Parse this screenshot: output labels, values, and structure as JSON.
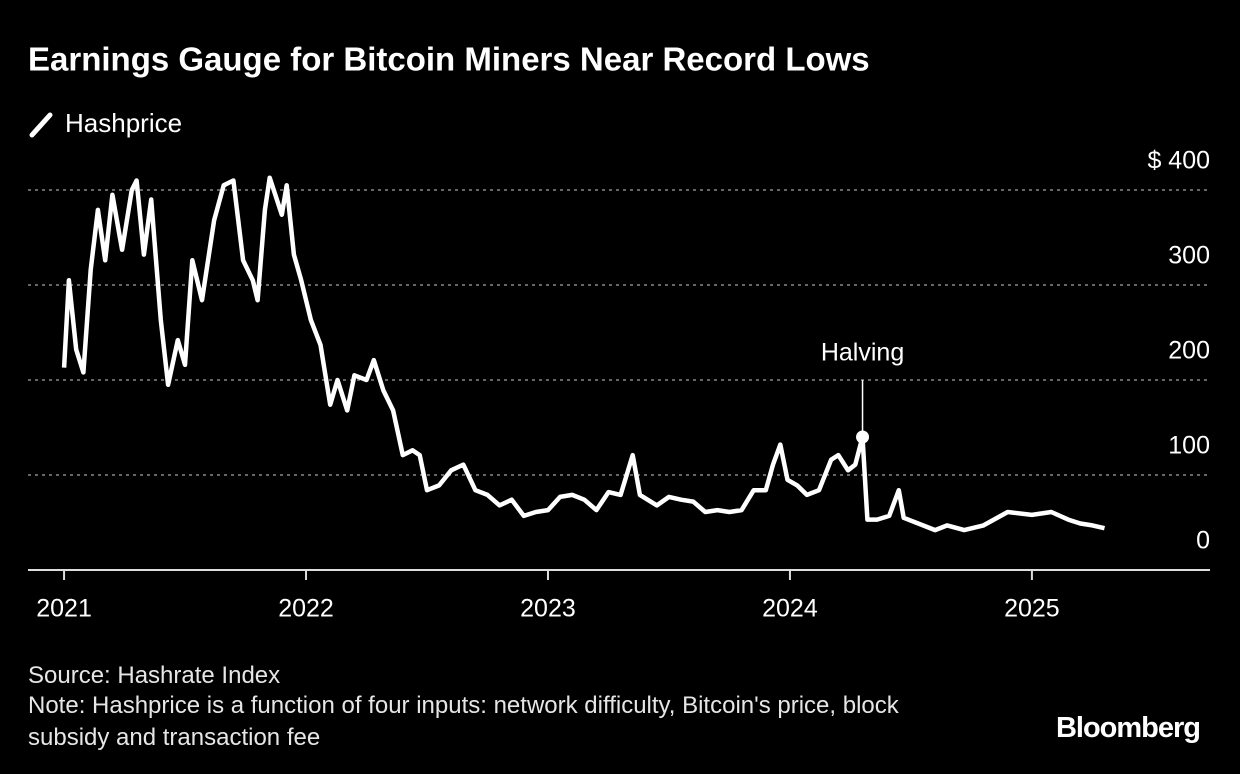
{
  "chart_data": {
    "type": "line",
    "title": "Earnings Gauge for Bitcoin Miners Near Record Lows",
    "source": "Source: Hashrate Index",
    "note": "Note: Hashprice is a function of four inputs: network difficulty, Bitcoin's price, block subsidy and transaction fee",
    "brand": "Bloomberg",
    "x": [
      2021.0,
      2021.02,
      2021.05,
      2021.08,
      2021.11,
      2021.14,
      2021.17,
      2021.2,
      2021.24,
      2021.28,
      2021.3,
      2021.33,
      2021.36,
      2021.4,
      2021.43,
      2021.47,
      2021.5,
      2021.53,
      2021.57,
      2021.62,
      2021.66,
      2021.7,
      2021.74,
      2021.78,
      2021.8,
      2021.83,
      2021.85,
      2021.9,
      2021.92,
      2021.95,
      2021.98,
      2022.02,
      2022.06,
      2022.1,
      2022.13,
      2022.17,
      2022.2,
      2022.25,
      2022.28,
      2022.32,
      2022.36,
      2022.4,
      2022.44,
      2022.47,
      2022.5,
      2022.55,
      2022.6,
      2022.65,
      2022.7,
      2022.75,
      2022.8,
      2022.85,
      2022.9,
      2022.95,
      2023.0,
      2023.05,
      2023.1,
      2023.15,
      2023.2,
      2023.25,
      2023.3,
      2023.35,
      2023.38,
      2023.45,
      2023.5,
      2023.55,
      2023.6,
      2023.65,
      2023.7,
      2023.75,
      2023.8,
      2023.85,
      2023.9,
      2023.93,
      2023.96,
      2023.99,
      2024.03,
      2024.07,
      2024.12,
      2024.17,
      2024.2,
      2024.24,
      2024.27,
      2024.3,
      2024.32,
      2024.36,
      2024.41,
      2024.45,
      2024.47,
      2024.55,
      2024.6,
      2024.65,
      2024.72,
      2024.8,
      2024.9,
      2025.0,
      2025.08,
      2025.15,
      2025.2,
      2025.25,
      2025.3
    ],
    "series": [
      {
        "name": "Hashprice",
        "color": "#ffffff",
        "values": [
          213,
          305,
          232,
          208,
          316,
          379,
          326,
          395,
          337,
          400,
          410,
          332,
          390,
          263,
          195,
          242,
          216,
          326,
          284,
          368,
          405,
          410,
          326,
          305,
          284,
          379,
          413,
          374,
          405,
          332,
          305,
          263,
          237,
          174,
          200,
          168,
          205,
          200,
          221,
          189,
          168,
          121,
          126,
          121,
          84,
          89,
          105,
          111,
          84,
          79,
          68,
          74,
          57,
          61,
          63,
          77,
          79,
          74,
          63,
          82,
          79,
          121,
          79,
          68,
          77,
          74,
          72,
          61,
          63,
          61,
          63,
          84,
          84,
          111,
          132,
          95,
          89,
          79,
          84,
          116,
          121,
          105,
          111,
          140,
          53,
          53,
          57,
          84,
          55,
          47,
          42,
          47,
          42,
          47,
          61,
          58,
          61,
          53,
          49,
          47,
          44
        ]
      }
    ],
    "annotations": [
      {
        "text": "Halving",
        "x": 2024.3,
        "y": 140
      }
    ],
    "xlim": [
      2020.851,
      2025.736
    ],
    "xticks": [
      2021,
      2022,
      2023,
      2024,
      2025
    ],
    "ylim": [
      0,
      400
    ],
    "yticks": [
      0,
      100,
      200,
      300,
      {
        "value": 400,
        "label": "$ 400"
      }
    ],
    "grid": true
  }
}
